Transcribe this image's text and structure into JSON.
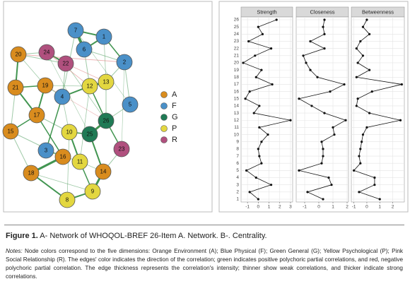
{
  "network": {
    "nodes": [
      {
        "label": "7",
        "color": "#4a90c8"
      },
      {
        "label": "1",
        "color": "#4a90c8"
      },
      {
        "label": "6",
        "color": "#4a90c8"
      },
      {
        "label": "2",
        "color": "#4a90c8"
      },
      {
        "label": "20",
        "color": "#d98c1e"
      },
      {
        "label": "24",
        "color": "#b0507e"
      },
      {
        "label": "22",
        "color": "#b0507e"
      },
      {
        "label": "19",
        "color": "#d98c1e"
      },
      {
        "label": "21",
        "color": "#d98c1e"
      },
      {
        "label": "4",
        "color": "#4a90c8"
      },
      {
        "label": "12",
        "color": "#e3d740"
      },
      {
        "label": "13",
        "color": "#e3d740"
      },
      {
        "label": "5",
        "color": "#4a90c8"
      },
      {
        "label": "17",
        "color": "#d98c1e"
      },
      {
        "label": "26",
        "color": "#1f7a55"
      },
      {
        "label": "10",
        "color": "#e3d740"
      },
      {
        "label": "25",
        "color": "#1f7a55"
      },
      {
        "label": "15",
        "color": "#d98c1e"
      },
      {
        "label": "3",
        "color": "#4a90c8"
      },
      {
        "label": "16",
        "color": "#d98c1e"
      },
      {
        "label": "11",
        "color": "#e3d740"
      },
      {
        "label": "23",
        "color": "#b0507e"
      },
      {
        "label": "18",
        "color": "#d98c1e"
      },
      {
        "label": "14",
        "color": "#d98c1e"
      },
      {
        "label": "9",
        "color": "#e3d740"
      },
      {
        "label": "8",
        "color": "#e3d740"
      }
    ],
    "legend": [
      {
        "label": "A",
        "color": "#d98c1e"
      },
      {
        "label": "F",
        "color": "#4a90c8"
      },
      {
        "label": "G",
        "color": "#1f7a55"
      },
      {
        "label": "P",
        "color": "#e3d740"
      },
      {
        "label": "R",
        "color": "#b0507e"
      }
    ]
  },
  "chart_data": {
    "type": "line",
    "categories": [
      1,
      2,
      3,
      4,
      5,
      6,
      7,
      8,
      9,
      10,
      11,
      12,
      13,
      14,
      15,
      16,
      17,
      18,
      19,
      20,
      21,
      22,
      23,
      24,
      25,
      26
    ],
    "facets": [
      {
        "title": "Strength",
        "xlim": [
          -1.6,
          3.2
        ],
        "xticks": [
          -1,
          0,
          1,
          2,
          3
        ],
        "values": [
          0.0,
          -0.8,
          1.2,
          -0.2,
          -1.1,
          0.3,
          0.1,
          0.0,
          0.3,
          0.9,
          0.1,
          3.0,
          -0.4,
          0.1,
          -1.2,
          -0.8,
          1.3,
          -0.2,
          0.3,
          -1.4,
          -0.3,
          1.2,
          -0.9,
          0.4,
          0.0,
          1.7
        ]
      },
      {
        "title": "Closeness",
        "xlim": [
          -1.6,
          2.1
        ],
        "xticks": [
          -1,
          0,
          1,
          2
        ],
        "values": [
          0.3,
          -0.8,
          0.9,
          0.7,
          -1.4,
          0.2,
          0.3,
          0.3,
          0.2,
          1.1,
          1.0,
          1.9,
          0.4,
          -0.5,
          -1.4,
          0.8,
          1.8,
          -0.1,
          -0.6,
          -0.9,
          -1.1,
          0.4,
          -0.6,
          0.4,
          0.3,
          0.4
        ]
      },
      {
        "title": "Betweenness",
        "xlim": [
          -1.2,
          2.9
        ],
        "xticks": [
          -1,
          0,
          1,
          2
        ],
        "values": [
          1.0,
          -0.6,
          0.6,
          0.6,
          -1.0,
          -0.5,
          -0.6,
          -0.5,
          -0.4,
          -0.3,
          0.0,
          2.6,
          0.2,
          -0.8,
          -0.7,
          0.4,
          2.7,
          -0.8,
          0.2,
          -0.7,
          -0.3,
          -0.8,
          -0.5,
          0.2,
          -0.3,
          0.0
        ]
      }
    ]
  },
  "caption": {
    "label": "Figure 1.",
    "title": "A- Network of WHOQOL-BREF 26-Item A. Network. B-. Centrality.",
    "notes_label": "Notes:",
    "notes": "Node colors correspond to the five dimensions: Orange Environment (A); Blue Physical (F); Green General (G); Yellow Psychological (P); Pink Social Relationship (R). The edges' color indicates the direction of the correlation; green indicates positive polychoric partial correlations, and red, negative polychoric partial correlation. The edge thickness represents the correlation's intensity; thinner show weak correlations, and thicker indicate strong correlations."
  }
}
